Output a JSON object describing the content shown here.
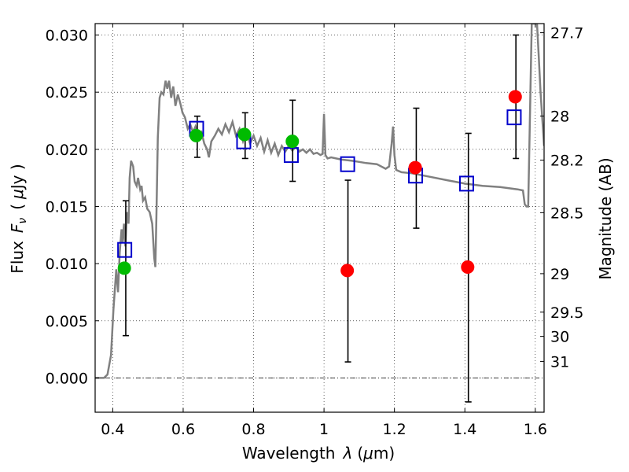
{
  "chart_data": {
    "type": "scatter",
    "xlabel_main": "Wavelength",
    "xlabel_symbol": "λ",
    "xlabel_unit_open": "(",
    "xlabel_unit_mu": "μ",
    "xlabel_unit_rest": "m)",
    "ylabel_main": "Flux",
    "ylabel_symbol": "F",
    "ylabel_sub": "ν",
    "ylabel_unit_open": "(",
    "ylabel_unit_mu": "μ",
    "ylabel_unit_rest": "Jy )",
    "y2label": "Magnitude (AB)",
    "xlim": [
      0.35,
      1.625
    ],
    "ylim": [
      -0.003,
      0.031
    ],
    "grid": true,
    "x_ticks": [
      {
        "value": 0.4,
        "label": "0.4"
      },
      {
        "value": 0.6,
        "label": "0.6"
      },
      {
        "value": 0.8,
        "label": "0.8"
      },
      {
        "value": 1.0,
        "label": "1"
      },
      {
        "value": 1.2,
        "label": "1.2"
      },
      {
        "value": 1.4,
        "label": "1.4"
      },
      {
        "value": 1.6,
        "label": "1.6"
      }
    ],
    "y_ticks": [
      {
        "value": 0.0,
        "label": "0.000"
      },
      {
        "value": 0.005,
        "label": "0.005"
      },
      {
        "value": 0.01,
        "label": "0.010"
      },
      {
        "value": 0.015,
        "label": "0.015"
      },
      {
        "value": 0.02,
        "label": "0.020"
      },
      {
        "value": 0.025,
        "label": "0.025"
      },
      {
        "value": 0.03,
        "label": "0.030"
      }
    ],
    "y2_ticks": [
      {
        "value": 27.7,
        "label": "27.7"
      },
      {
        "value": 28.0,
        "label": "28"
      },
      {
        "value": 28.2,
        "label": "28.2"
      },
      {
        "value": 28.5,
        "label": "28.5"
      },
      {
        "value": 29.0,
        "label": "29"
      },
      {
        "value": 29.5,
        "label": "29.5"
      },
      {
        "value": 30.0,
        "label": "30"
      },
      {
        "value": 31.0,
        "label": "31"
      }
    ],
    "zero_line": 0.0,
    "colors": {
      "model": "#808080",
      "green": "#00bb00",
      "red": "#ff0000",
      "box": "#0000cc",
      "errorbar": "#000000",
      "zero_line": "#000000"
    },
    "model_curve": [
      [
        0.35,
        0.0
      ],
      [
        0.375,
        0.0
      ],
      [
        0.385,
        0.0003
      ],
      [
        0.395,
        0.002
      ],
      [
        0.402,
        0.006
      ],
      [
        0.41,
        0.0095
      ],
      [
        0.415,
        0.0075
      ],
      [
        0.42,
        0.011
      ],
      [
        0.425,
        0.013
      ],
      [
        0.428,
        0.0118
      ],
      [
        0.432,
        0.0135
      ],
      [
        0.436,
        0.0115
      ],
      [
        0.44,
        0.0145
      ],
      [
        0.445,
        0.0135
      ],
      [
        0.448,
        0.0175
      ],
      [
        0.452,
        0.019
      ],
      [
        0.458,
        0.0185
      ],
      [
        0.462,
        0.0172
      ],
      [
        0.468,
        0.0168
      ],
      [
        0.472,
        0.0175
      ],
      [
        0.478,
        0.0165
      ],
      [
        0.482,
        0.0168
      ],
      [
        0.486,
        0.0155
      ],
      [
        0.492,
        0.0158
      ],
      [
        0.498,
        0.0148
      ],
      [
        0.505,
        0.0145
      ],
      [
        0.512,
        0.0135
      ],
      [
        0.518,
        0.0105
      ],
      [
        0.521,
        0.0097
      ],
      [
        0.524,
        0.014
      ],
      [
        0.528,
        0.021
      ],
      [
        0.533,
        0.0245
      ],
      [
        0.538,
        0.025
      ],
      [
        0.544,
        0.0248
      ],
      [
        0.55,
        0.026
      ],
      [
        0.555,
        0.0253
      ],
      [
        0.56,
        0.026
      ],
      [
        0.566,
        0.0245
      ],
      [
        0.572,
        0.0255
      ],
      [
        0.578,
        0.0238
      ],
      [
        0.585,
        0.0248
      ],
      [
        0.592,
        0.024
      ],
      [
        0.598,
        0.0232
      ],
      [
        0.605,
        0.0228
      ],
      [
        0.613,
        0.0218
      ],
      [
        0.62,
        0.0222
      ],
      [
        0.628,
        0.0215
      ],
      [
        0.635,
        0.022
      ],
      [
        0.643,
        0.0212
      ],
      [
        0.652,
        0.0215
      ],
      [
        0.66,
        0.0205
      ],
      [
        0.668,
        0.02
      ],
      [
        0.673,
        0.0193
      ],
      [
        0.68,
        0.0207
      ],
      [
        0.69,
        0.0212
      ],
      [
        0.7,
        0.0218
      ],
      [
        0.71,
        0.0213
      ],
      [
        0.72,
        0.0222
      ],
      [
        0.73,
        0.0215
      ],
      [
        0.74,
        0.0224
      ],
      [
        0.75,
        0.0212
      ],
      [
        0.76,
        0.0218
      ],
      [
        0.77,
        0.0207
      ],
      [
        0.78,
        0.0215
      ],
      [
        0.79,
        0.0205
      ],
      [
        0.8,
        0.0212
      ],
      [
        0.81,
        0.0203
      ],
      [
        0.82,
        0.021
      ],
      [
        0.83,
        0.0198
      ],
      [
        0.84,
        0.0208
      ],
      [
        0.85,
        0.0197
      ],
      [
        0.86,
        0.0205
      ],
      [
        0.87,
        0.0195
      ],
      [
        0.88,
        0.0203
      ],
      [
        0.89,
        0.0198
      ],
      [
        0.9,
        0.0203
      ],
      [
        0.91,
        0.0199
      ],
      [
        0.92,
        0.0202
      ],
      [
        0.93,
        0.0198
      ],
      [
        0.94,
        0.02
      ],
      [
        0.95,
        0.0197
      ],
      [
        0.96,
        0.02
      ],
      [
        0.97,
        0.0196
      ],
      [
        0.98,
        0.0197
      ],
      [
        0.99,
        0.0195
      ],
      [
        0.996,
        0.0196
      ],
      [
        1.0,
        0.0231
      ],
      [
        1.004,
        0.0195
      ],
      [
        1.01,
        0.0192
      ],
      [
        1.02,
        0.0193
      ],
      [
        1.05,
        0.0191
      ],
      [
        1.08,
        0.019
      ],
      [
        1.1,
        0.0189
      ],
      [
        1.12,
        0.0188
      ],
      [
        1.15,
        0.0187
      ],
      [
        1.175,
        0.0183
      ],
      [
        1.185,
        0.0185
      ],
      [
        1.192,
        0.0205
      ],
      [
        1.196,
        0.022
      ],
      [
        1.2,
        0.0195
      ],
      [
        1.205,
        0.0182
      ],
      [
        1.22,
        0.018
      ],
      [
        1.25,
        0.0179
      ],
      [
        1.3,
        0.0176
      ],
      [
        1.35,
        0.0173
      ],
      [
        1.4,
        0.017
      ],
      [
        1.45,
        0.0168
      ],
      [
        1.5,
        0.0167
      ],
      [
        1.55,
        0.0165
      ],
      [
        1.565,
        0.0164
      ],
      [
        1.57,
        0.0152
      ],
      [
        1.575,
        0.015
      ],
      [
        1.58,
        0.015
      ],
      [
        1.59,
        0.031
      ],
      [
        1.605,
        0.031
      ],
      [
        1.61,
        0.028
      ],
      [
        1.615,
        0.025
      ],
      [
        1.625,
        0.0203
      ]
    ],
    "series": [
      {
        "marker": "green-circle",
        "points": [
          {
            "x": 0.433,
            "y": 0.0096
          },
          {
            "x": 0.637,
            "y": 0.0212
          },
          {
            "x": 0.774,
            "y": 0.0213
          },
          {
            "x": 0.91,
            "y": 0.0207
          }
        ]
      },
      {
        "marker": "red-circle",
        "points": [
          {
            "x": 1.066,
            "y": 0.0094
          },
          {
            "x": 1.259,
            "y": 0.0184
          },
          {
            "x": 1.408,
            "y": 0.0097
          },
          {
            "x": 1.543,
            "y": 0.0246
          }
        ]
      },
      {
        "marker": "blue-open-square",
        "points": [
          {
            "x": 0.434,
            "y": 0.0112
          },
          {
            "x": 0.638,
            "y": 0.0218
          },
          {
            "x": 0.772,
            "y": 0.0207
          },
          {
            "x": 0.907,
            "y": 0.0195
          },
          {
            "x": 1.067,
            "y": 0.0187
          },
          {
            "x": 1.26,
            "y": 0.0177
          },
          {
            "x": 1.405,
            "y": 0.017
          },
          {
            "x": 1.54,
            "y": 0.0228
          }
        ]
      }
    ],
    "error_bars": [
      {
        "x": 0.437,
        "low": 0.0037,
        "high": 0.0155
      },
      {
        "x": 0.64,
        "low": 0.0193,
        "high": 0.0229
      },
      {
        "x": 0.776,
        "low": 0.0192,
        "high": 0.0232
      },
      {
        "x": 0.911,
        "low": 0.0172,
        "high": 0.0243
      },
      {
        "x": 1.068,
        "low": 0.0014,
        "high": 0.0173
      },
      {
        "x": 1.262,
        "low": 0.0131,
        "high": 0.0236
      },
      {
        "x": 1.41,
        "low": -0.0021,
        "high": 0.0214
      },
      {
        "x": 1.545,
        "low": 0.0192,
        "high": 0.03
      }
    ]
  }
}
